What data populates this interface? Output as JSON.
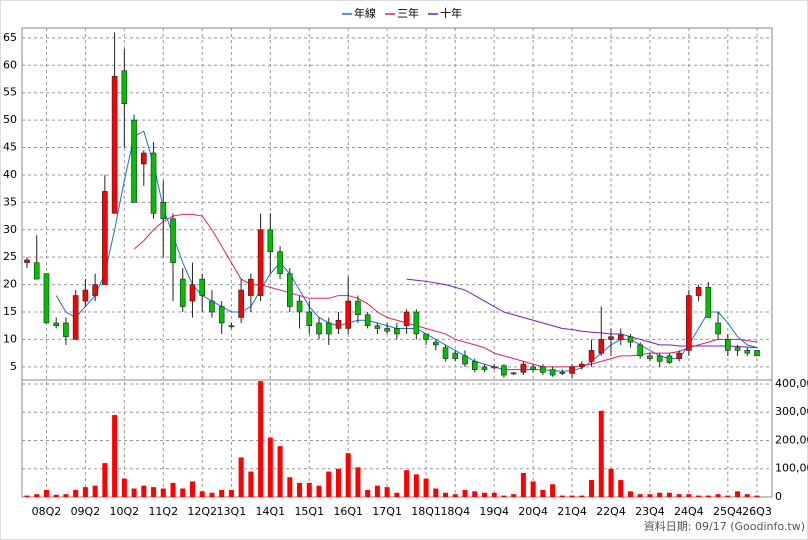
{
  "chart_data": {
    "type": "candlestick",
    "categories": [
      null,
      null,
      "08Q2",
      null,
      null,
      null,
      "09Q2",
      null,
      null,
      null,
      "10Q2",
      null,
      null,
      null,
      "11Q2",
      null,
      null,
      null,
      "12Q2",
      null,
      null,
      "13Q1",
      null,
      null,
      null,
      "14Q1",
      null,
      null,
      null,
      "15Q1",
      null,
      null,
      null,
      "16Q1",
      null,
      null,
      null,
      "17Q1",
      null,
      null,
      null,
      "18Q1",
      null,
      null,
      "18Q4",
      null,
      null,
      null,
      "19Q4",
      null,
      null,
      null,
      "20Q4",
      null,
      null,
      null,
      "21Q4",
      null,
      null,
      null,
      "22Q4",
      null,
      null,
      null,
      "23Q4",
      null,
      null,
      null,
      "24Q4",
      null,
      null,
      null,
      "25Q4",
      null,
      null,
      "26Q3"
    ],
    "open": [
      24,
      24,
      22,
      13,
      13,
      10,
      17,
      18,
      20,
      33,
      59,
      50,
      42,
      44,
      35,
      32,
      21,
      17,
      21,
      17,
      16,
      12.5,
      14,
      18,
      18,
      30,
      26,
      22,
      17,
      15,
      13,
      13,
      12,
      12,
      17,
      14.5,
      12.5,
      12,
      12,
      12.5,
      15,
      11,
      9.5,
      8.5,
      7.5,
      7,
      6,
      5,
      5,
      5.2,
      3.8,
      4,
      5,
      5,
      4.5,
      4,
      3.8,
      5,
      6,
      7.5,
      10,
      10,
      10.5,
      9,
      7,
      7,
      7,
      6.5,
      8,
      18,
      19.5,
      13,
      10,
      8.5,
      8,
      8
    ],
    "high": [
      25,
      29,
      22,
      14,
      14,
      19,
      21,
      22,
      40,
      66,
      63,
      51,
      44.5,
      46,
      39,
      33,
      23,
      24,
      22,
      19,
      17,
      13,
      21,
      22,
      33,
      33,
      27,
      23,
      18,
      17,
      14,
      14,
      15,
      21.5,
      18,
      15,
      13,
      13,
      13,
      15.5,
      15.5,
      11,
      10,
      9,
      8,
      8,
      6.5,
      5.5,
      5.5,
      5.5,
      4,
      6,
      5.5,
      5.5,
      5,
      4.5,
      5.5,
      6,
      10,
      16,
      12,
      12,
      11,
      9.5,
      7.5,
      7.5,
      7.5,
      8,
      19,
      20,
      20.5,
      15,
      11,
      9,
      8.5,
      8
    ],
    "low": [
      23,
      21,
      13,
      12,
      9,
      10,
      16,
      17,
      20,
      33,
      45,
      35,
      38,
      32,
      25,
      17,
      15,
      14,
      15,
      14,
      11,
      12,
      13,
      15,
      17,
      22,
      21,
      15,
      12,
      11,
      10,
      9,
      11,
      11,
      13,
      12,
      11,
      11,
      10,
      11,
      10,
      9,
      8,
      6,
      6,
      5,
      4,
      4,
      4.5,
      3,
      3.5,
      3.5,
      4,
      3.5,
      3.2,
      3.5,
      3,
      4.5,
      5,
      7,
      7,
      9,
      8.5,
      6.5,
      6,
      5,
      5.5,
      6,
      7,
      17,
      14,
      10,
      7,
      7,
      7,
      7
    ],
    "close": [
      24.5,
      21,
      13,
      12.5,
      10.5,
      18,
      19,
      20,
      37,
      58,
      53,
      35,
      44,
      33,
      32,
      24,
      16,
      20,
      18,
      15,
      13,
      12.3,
      19,
      21,
      30,
      26,
      22,
      16,
      15,
      12.5,
      11,
      11,
      13.5,
      17,
      14.5,
      12.5,
      12,
      11.5,
      11,
      15,
      11,
      10,
      9,
      6.5,
      6.5,
      5.5,
      4.5,
      4.5,
      4.8,
      3.5,
      3.9,
      5.5,
      4.5,
      4,
      3.5,
      3.8,
      5,
      5.5,
      8,
      10,
      10.5,
      10.8,
      9.5,
      7,
      6.5,
      6,
      5.8,
      7.5,
      18,
      19.5,
      14,
      11,
      8,
      8,
      7.5,
      7
    ],
    "up_color": "#ff0000",
    "down_color": "#00c000",
    "ylim": [
      2.6,
      66.8
    ],
    "yticks": [
      5,
      10,
      15,
      20,
      25,
      30,
      35,
      40,
      45,
      50,
      55,
      60,
      65
    ],
    "grid": true,
    "series": [
      {
        "name": "年線",
        "color": "#1f6fd6",
        "values": [
          null,
          null,
          null,
          18,
          15,
          14,
          16,
          18,
          22,
          30,
          39,
          47,
          48,
          42,
          34,
          29,
          24,
          20,
          18,
          17,
          16,
          15,
          15,
          16,
          19,
          22,
          24,
          22,
          19,
          16,
          14,
          13,
          12.5,
          13,
          13.5,
          13.5,
          13,
          12.5,
          12,
          12,
          12,
          11,
          10,
          9,
          8,
          7,
          6,
          5.5,
          5,
          4.5,
          4.5,
          4.5,
          4.5,
          4.5,
          4.3,
          4.2,
          4.3,
          4.8,
          6,
          7.5,
          9,
          10,
          10,
          9,
          8,
          7,
          6.5,
          6.5,
          9,
          12,
          15,
          15,
          13,
          10.5,
          9,
          8.5
        ]
      },
      {
        "name": "三年",
        "color": "#e0206a",
        "values": [
          null,
          null,
          null,
          null,
          null,
          null,
          null,
          null,
          null,
          null,
          null,
          26.5,
          28,
          30,
          31.5,
          32.5,
          32.8,
          32.8,
          32.5,
          30,
          27,
          24,
          21,
          20,
          20,
          19.5,
          19,
          18.5,
          18,
          17.5,
          17.5,
          17.5,
          18,
          18,
          17.5,
          16.5,
          15,
          14,
          13.5,
          13,
          12.5,
          12,
          11.5,
          11,
          10,
          9.5,
          9,
          8.5,
          7.5,
          7,
          6.5,
          6,
          5.5,
          5,
          5,
          5,
          5,
          5.2,
          5.5,
          6,
          6.5,
          7,
          7,
          7.2,
          7.5,
          7.5,
          7.5,
          7.8,
          8.5,
          9,
          9.5,
          10,
          10,
          10,
          9.8,
          9.5
        ]
      },
      {
        "name": "十年",
        "color": "#7a1fb0",
        "values": [
          null,
          null,
          null,
          null,
          null,
          null,
          null,
          null,
          null,
          null,
          null,
          null,
          null,
          null,
          null,
          null,
          null,
          null,
          null,
          null,
          null,
          null,
          null,
          null,
          null,
          null,
          null,
          null,
          null,
          null,
          null,
          null,
          null,
          null,
          null,
          null,
          null,
          null,
          null,
          21,
          20.8,
          20.6,
          20.3,
          20,
          19.5,
          19,
          18,
          17,
          16,
          15,
          14.5,
          14,
          13.5,
          13,
          12.5,
          12,
          11.8,
          11.5,
          11.3,
          11.2,
          11,
          11,
          10.5,
          10,
          9.5,
          9,
          9,
          8.8,
          8.8,
          8.8,
          8.8,
          8.8,
          8.8,
          8.7,
          8.6,
          8.5
        ]
      }
    ],
    "volume": {
      "color": "#ff0000",
      "values": [
        5000,
        10000,
        25000,
        8000,
        10000,
        25000,
        35000,
        40000,
        120000,
        290000,
        65000,
        30000,
        40000,
        35000,
        30000,
        50000,
        30000,
        55000,
        20000,
        15000,
        25000,
        25000,
        140000,
        90000,
        410000,
        210000,
        180000,
        70000,
        50000,
        50000,
        40000,
        90000,
        100000,
        155000,
        105000,
        25000,
        40000,
        35000,
        15000,
        95000,
        80000,
        65000,
        30000,
        15000,
        10000,
        25000,
        20000,
        15000,
        15000,
        5000,
        10000,
        85000,
        55000,
        25000,
        45000,
        5000,
        5000,
        5000,
        60000,
        305000,
        100000,
        60000,
        20000,
        10000,
        10000,
        15000,
        15000,
        10000,
        10000,
        5000,
        5000,
        10000,
        5000,
        20000,
        10000,
        5000
      ],
      "ylim": [
        0,
        414000
      ],
      "yticks": [
        0,
        {
          "value": 100000,
          "label": "100,000"
        },
        {
          "value": 200000,
          "label": "200,000"
        },
        {
          "value": 300000,
          "label": "300,000"
        },
        {
          "value": 400000,
          "label": "400,000"
        }
      ]
    },
    "annotation": "資料日期: 09/17  (Goodinfo.tw)"
  }
}
